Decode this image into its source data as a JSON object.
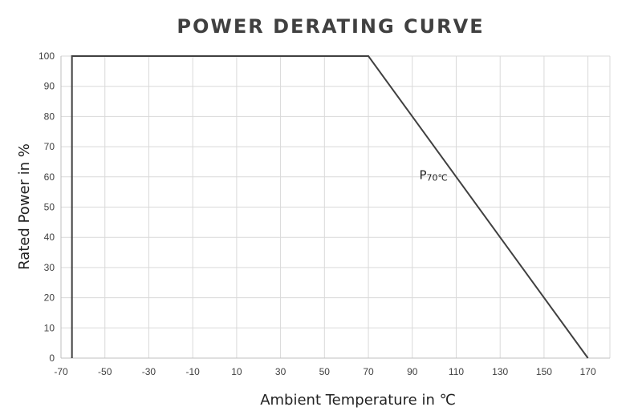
{
  "chart_data": {
    "type": "line",
    "title": "POWER DERATING CURVE",
    "xlabel": "Ambient Temperature  in ℃",
    "ylabel": "Rated Power in %",
    "xlim": [
      -70,
      180
    ],
    "ylim": [
      0,
      100
    ],
    "x_ticks": [
      -70,
      -50,
      -30,
      -10,
      10,
      30,
      50,
      70,
      90,
      110,
      130,
      150,
      170
    ],
    "y_ticks": [
      0,
      10,
      20,
      30,
      40,
      50,
      60,
      70,
      80,
      90,
      100
    ],
    "x_tick_labels": [
      "-70",
      "-50",
      "-30",
      "-10",
      "10",
      "30",
      "50",
      "70",
      "90",
      "110",
      "130",
      "150",
      "170"
    ],
    "y_tick_labels": [
      "0",
      "10",
      "20",
      "30",
      "40",
      "50",
      "60",
      "70",
      "80",
      "90",
      "100"
    ],
    "grid": true,
    "series": [
      {
        "x": [
          -65,
          -65,
          70,
          170
        ],
        "y": [
          0,
          100,
          100,
          0
        ],
        "color": "#404040"
      }
    ],
    "annotations": [
      {
        "text": "P",
        "subscript": "70℃",
        "x": 110,
        "y": 55
      }
    ]
  }
}
